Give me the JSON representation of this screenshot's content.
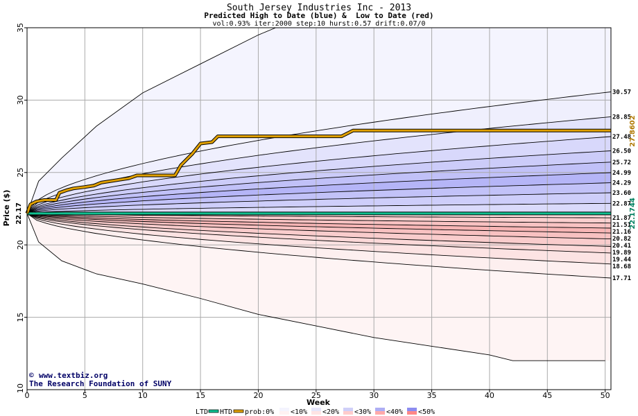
{
  "chart_data": {
    "type": "area",
    "title": "South Jersey Industries Inc - 2013",
    "subtitle": "Predicted High to Date (blue) &  Low to Date (red)",
    "params": "vol:0.93% iter:2000 step:10 hurst:0.57 drift:0.07/0",
    "xlabel": "Week",
    "ylabel": "Price ($)",
    "xlim": [
      0,
      50.5
    ],
    "ylim": [
      10,
      35
    ],
    "x_ticks": [
      0,
      5,
      10,
      15,
      20,
      25,
      30,
      35,
      40,
      45,
      50
    ],
    "y_ticks": [
      15,
      20,
      25,
      30,
      35
    ],
    "grid": true,
    "start_price": 22.17,
    "start_label": "22.17",
    "htd_value_label": "27.8602",
    "ltd_value_label": "22.1744",
    "colors": {
      "high_band": "#7878f0",
      "low_band": "#f07878",
      "htd": "#e0a000",
      "ltd": "#10c090",
      "htd_text": "#b07800",
      "ltd_text": "#008060"
    },
    "high_quantiles_end": [
      30.57,
      28.85,
      27.48,
      26.5,
      25.72,
      24.99,
      24.29,
      23.6,
      22.87
    ],
    "low_quantiles_end": [
      21.87,
      21.51,
      21.16,
      20.82,
      20.41,
      19.89,
      19.44,
      18.68,
      17.71
    ],
    "right_labels": [
      "30.57",
      "28.85",
      "27.48",
      "26.50",
      "25.72",
      "24.99",
      "24.29",
      "23.60",
      "22.87",
      "21.87",
      "21.51",
      "21.16",
      "20.82",
      "20.41",
      "19.89",
      "19.44",
      "18.68",
      "17.71"
    ],
    "outer_high": [
      [
        0,
        22.17
      ],
      [
        1,
        24.4
      ],
      [
        3,
        26.0
      ],
      [
        6,
        28.2
      ],
      [
        10,
        30.5
      ],
      [
        15,
        32.5
      ],
      [
        20,
        34.5
      ],
      [
        21.5,
        35
      ]
    ],
    "outer_low": [
      [
        0,
        22.17
      ],
      [
        1,
        20.2
      ],
      [
        3,
        18.9
      ],
      [
        6,
        18.0
      ],
      [
        10,
        17.3
      ],
      [
        15,
        16.3
      ],
      [
        20,
        15.2
      ],
      [
        25,
        14.4
      ],
      [
        30,
        13.6
      ],
      [
        35,
        13.0
      ],
      [
        40,
        12.4
      ],
      [
        42,
        12.0
      ],
      [
        50,
        12.0
      ]
    ],
    "htd_line": [
      [
        0,
        22.17
      ],
      [
        0.3,
        22.8
      ],
      [
        0.8,
        23.0
      ],
      [
        1.5,
        23.1
      ],
      [
        2.5,
        23.1
      ],
      [
        2.8,
        23.6
      ],
      [
        3.5,
        23.8
      ],
      [
        4.0,
        23.9
      ],
      [
        5.0,
        24.0
      ],
      [
        5.8,
        24.1
      ],
      [
        6.4,
        24.3
      ],
      [
        7.2,
        24.4
      ],
      [
        8.0,
        24.5
      ],
      [
        8.8,
        24.6
      ],
      [
        9.5,
        24.8
      ],
      [
        11.0,
        24.8
      ],
      [
        12.8,
        24.8
      ],
      [
        13.3,
        25.5
      ],
      [
        13.8,
        25.9
      ],
      [
        14.3,
        26.3
      ],
      [
        15.0,
        27.0
      ],
      [
        16.0,
        27.1
      ],
      [
        16.5,
        27.5
      ],
      [
        20.0,
        27.5
      ],
      [
        25.0,
        27.5
      ],
      [
        27.2,
        27.5
      ],
      [
        28.2,
        27.9
      ],
      [
        30.0,
        27.9
      ],
      [
        35.0,
        27.9
      ],
      [
        40.0,
        27.9
      ],
      [
        50.5,
        27.9
      ]
    ],
    "ltd_line": [
      [
        0,
        22.17
      ],
      [
        50.5,
        22.17
      ]
    ]
  },
  "credit": {
    "copyright_symbol": "©",
    "site": "www.textbiz.org",
    "org": "The Research Foundation of SUNY"
  },
  "legend": {
    "ltd": "LTD",
    "htd": "HTD",
    "prob": "prob:0%",
    "entries": [
      "<10%",
      "<20%",
      "<30%",
      "<40%",
      "<50%"
    ],
    "swatch_colors": [
      [
        "#f4f4fe",
        "#fff2f2"
      ],
      [
        "#e6e6fb",
        "#ffe4e4"
      ],
      [
        "#cfcff8",
        "#ffcccc"
      ],
      [
        "#aeaef4",
        "#ffaaaa"
      ],
      [
        "#8c8cf0",
        "#ff8888"
      ]
    ]
  }
}
